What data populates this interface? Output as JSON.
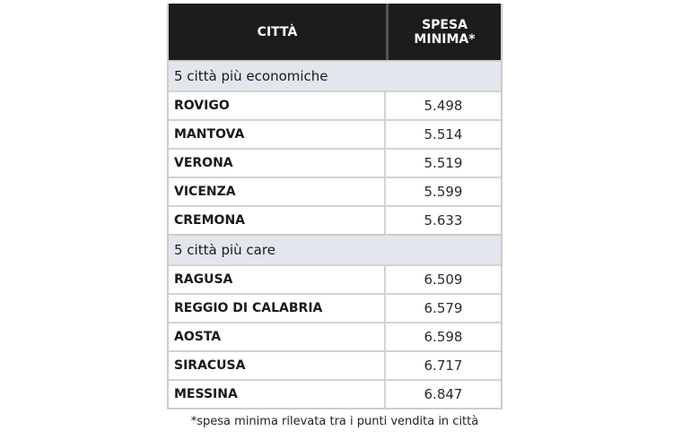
{
  "header": {
    "city": "CITTÀ",
    "spend": "SPESA\nMINIMA*"
  },
  "sections": [
    {
      "label": "5 città più economiche",
      "rows": [
        {
          "city": "ROVIGO",
          "value": "5.498"
        },
        {
          "city": "MANTOVA",
          "value": "5.514"
        },
        {
          "city": "VERONA",
          "value": "5.519"
        },
        {
          "city": "VICENZA",
          "value": "5.599"
        },
        {
          "city": "CREMONA",
          "value": "5.633"
        }
      ]
    },
    {
      "label": "5 città più care",
      "rows": [
        {
          "city": "RAGUSA",
          "value": "6.509"
        },
        {
          "city": "REGGIO DI CALABRIA",
          "value": "6.579"
        },
        {
          "city": "AOSTA",
          "value": "6.598"
        },
        {
          "city": "SIRACUSA",
          "value": "6.717"
        },
        {
          "city": "MESSINA",
          "value": "6.847"
        }
      ]
    }
  ],
  "footnote": "*spesa minima rilevata tra i punti vendita in città",
  "colors": {
    "header_bg": "#1c1c1c",
    "section_bg": "#e3e7ed"
  }
}
